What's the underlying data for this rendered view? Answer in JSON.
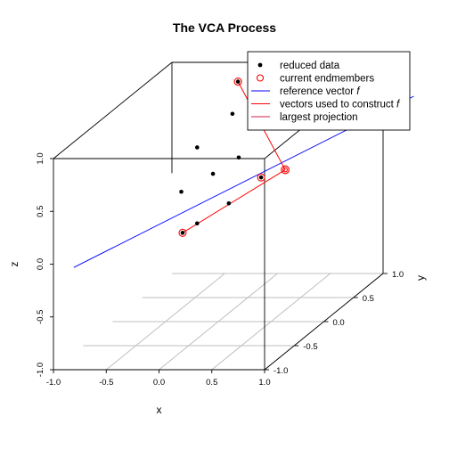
{
  "chart_data": {
    "type": "scatter3d",
    "title": "The VCA Process",
    "xlabel": "x",
    "ylabel": "y",
    "zlabel": "z",
    "xlim": [
      -1.0,
      1.0
    ],
    "ylim": [
      -1.0,
      1.0
    ],
    "zlim": [
      -1.0,
      1.0
    ],
    "x_ticks": [
      "-1.0",
      "-0.5",
      "0.0",
      "0.5",
      "1.0"
    ],
    "y_ticks": [
      "-1.0",
      "-0.5",
      "0.0",
      "0.5",
      "1.0"
    ],
    "z_ticks": [
      "-1.0",
      "-0.5",
      "0.0",
      "0.5",
      "1.0"
    ],
    "legend": {
      "position": "top-right",
      "entries": [
        {
          "label": "reduced data",
          "italic": "",
          "symbol": "dot",
          "color": "#000000"
        },
        {
          "label": "current endmembers",
          "italic": "",
          "symbol": "circle",
          "color": "#ff0000"
        },
        {
          "label": "reference vector ",
          "italic": "f",
          "symbol": "line",
          "color": "#0000ff"
        },
        {
          "label": "vectors used to construct ",
          "italic": "f",
          "symbol": "line",
          "color": "#ff0000"
        },
        {
          "label": "largest projection",
          "italic": "",
          "symbol": "line",
          "color": "#cc2244"
        }
      ]
    },
    "reduced_data": [
      {
        "x": -0.45,
        "y": 0.2,
        "z": -0.25
      },
      {
        "x": -0.15,
        "y": 0.6,
        "z": 1.0
      },
      {
        "x": 0.05,
        "y": 0.15,
        "z": 0.9
      },
      {
        "x": -0.2,
        "y": 0.0,
        "z": 0.65
      },
      {
        "x": 0.25,
        "y": -0.1,
        "z": 0.6
      },
      {
        "x": -0.05,
        "y": 0.0,
        "z": 0.4
      },
      {
        "x": -0.35,
        "y": 0.0,
        "z": 0.23
      },
      {
        "x": 0.35,
        "y": 0.1,
        "z": 0.32
      },
      {
        "x": 0.1,
        "y": 0.0,
        "z": 0.12
      },
      {
        "x": -0.2,
        "y": 0.0,
        "z": -0.07
      }
    ],
    "endmembers": [
      {
        "x": -0.45,
        "y": 0.2,
        "z": -0.25
      },
      {
        "x": -0.15,
        "y": 0.6,
        "z": 1.0
      },
      {
        "x": 0.35,
        "y": 0.1,
        "z": 0.32
      }
    ],
    "largest_projection": {
      "x": 0.55,
      "y": 0.15,
      "z": 0.37
    },
    "reference_line": [
      {
        "x": -1.2,
        "y": -0.3,
        "z": -0.35
      },
      {
        "x": 1.6,
        "y": 0.45,
        "z": 0.93
      }
    ],
    "construct_vectors": [
      {
        "from": 0,
        "to": 3
      },
      {
        "from": 1,
        "to": 3
      }
    ],
    "colors": {
      "reference": "#0000ff",
      "construct": "#ff0000",
      "endmember": "#ff0000",
      "box": "#000000",
      "floor_grid": "#bfbfbf"
    }
  }
}
